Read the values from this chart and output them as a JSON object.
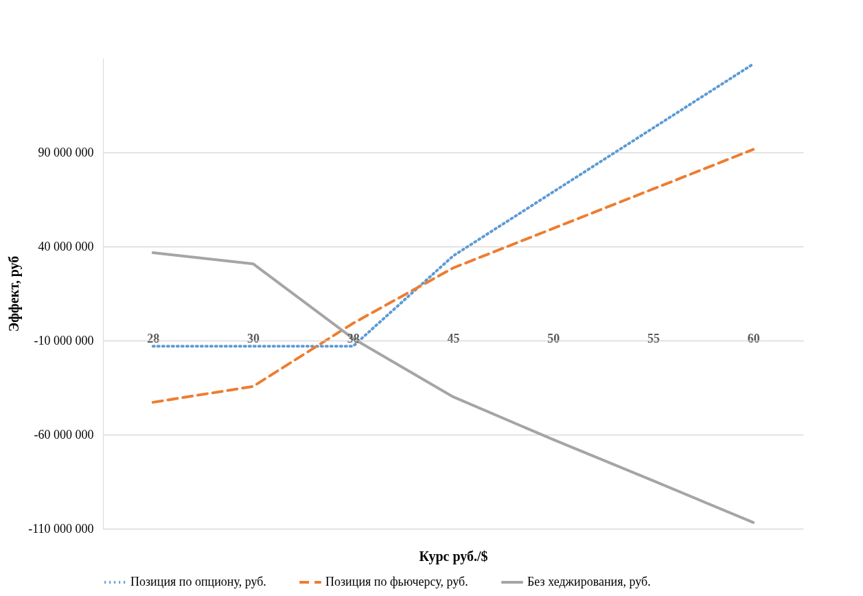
{
  "chart_data": {
    "type": "line",
    "xlabel": "Курс руб./$",
    "ylabel": "Эффект, руб",
    "categories": [
      "28",
      "30",
      "38",
      "45",
      "50",
      "55",
      "60"
    ],
    "ylim": [
      -110000000,
      140000000
    ],
    "yticks": [
      {
        "value": -110000000,
        "label": "-110 000 000"
      },
      {
        "value": -60000000,
        "label": "-60 000 000"
      },
      {
        "value": -10000000,
        "label": "-10 000 000"
      },
      {
        "value": 40000000,
        "label": "40 000 000"
      },
      {
        "value": 90000000,
        "label": "90 000 000"
      }
    ],
    "grid": "y",
    "legend": "bottom",
    "series": [
      {
        "name": "Позиция по опциону, руб.",
        "color": "#5b9bd5",
        "line_style": "dotted",
        "values": [
          -13000000,
          -13000000,
          -13000000,
          35000000,
          69000000,
          103000000,
          137000000
        ]
      },
      {
        "name": "Позиция по фьючерсу, руб.",
        "color": "#ed7d31",
        "line_style": "dashed",
        "values": [
          -42800000,
          -34400000,
          -800000,
          28600000,
          49600000,
          70600000,
          91600000
        ]
      },
      {
        "name": "Без хеджирования, руб.",
        "color": "#a5a5a5",
        "line_style": "solid",
        "values": [
          36700000,
          30800000,
          -8900000,
          -39900000,
          -62600000,
          -84500000,
          -106700000
        ]
      }
    ]
  }
}
